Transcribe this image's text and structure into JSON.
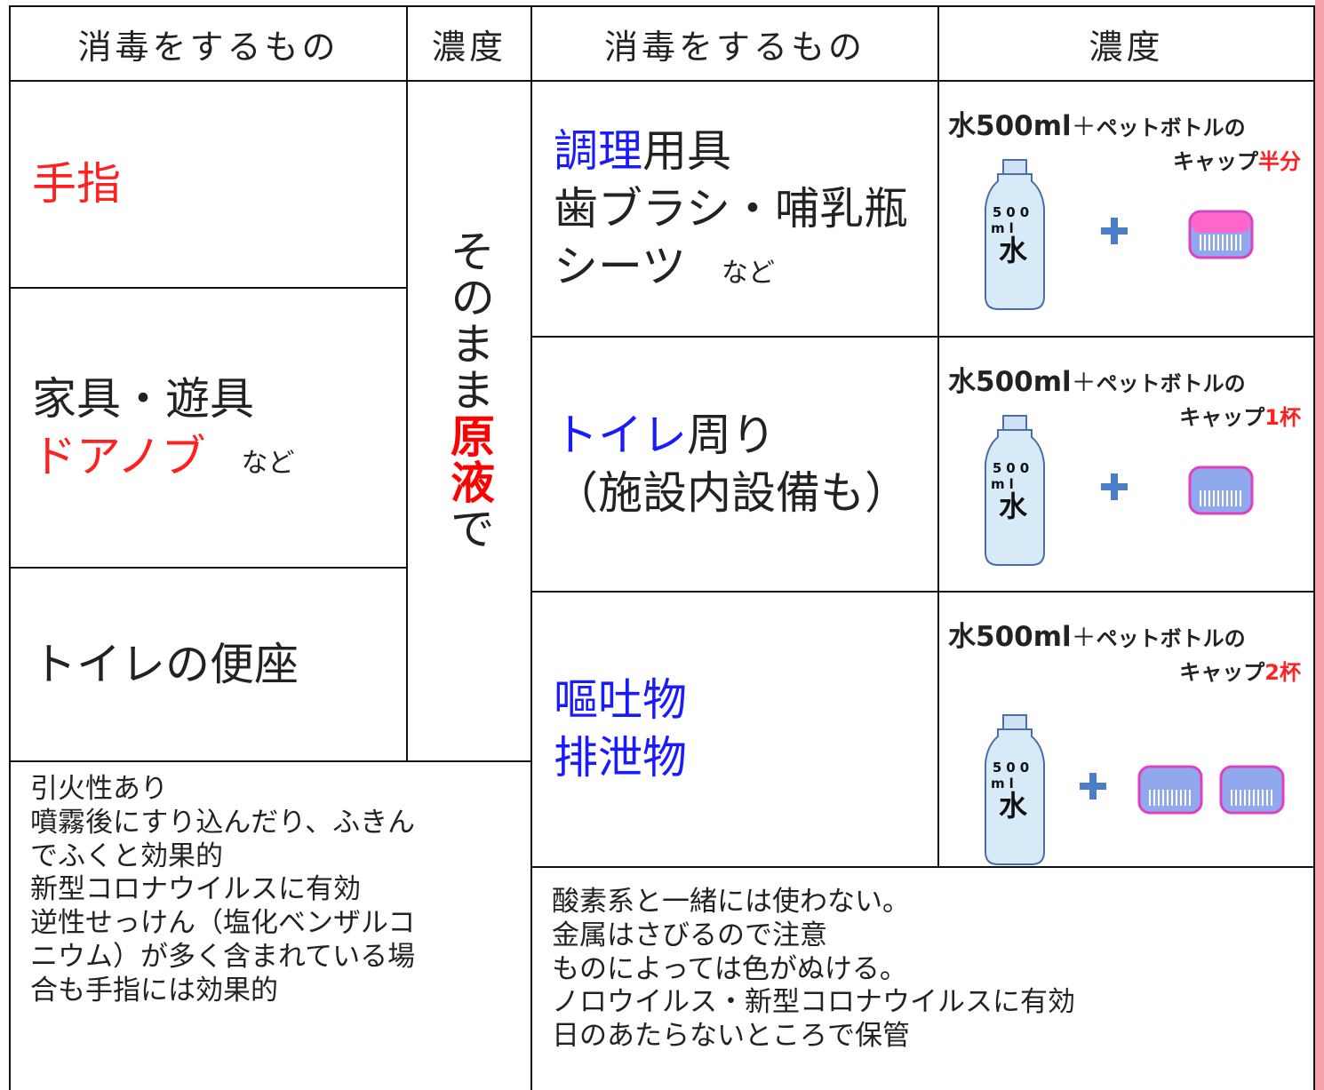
{
  "left": {
    "headers": [
      "消毒をするもの",
      "濃度"
    ],
    "rows": [
      [
        [
          {
            "text": "手指",
            "color": "#ff2020"
          }
        ]
      ],
      [
        [
          {
            "text": "家具・遊具"
          }
        ],
        [
          {
            "text": "ドアノブ",
            "color": "#ff2020"
          },
          {
            "text": "など",
            "style": "small"
          }
        ]
      ],
      [
        [
          {
            "text": "トイレの便座"
          }
        ]
      ]
    ],
    "concentration": [
      {
        "text": "そのまま"
      },
      {
        "text": "原液",
        "color": "#ff0000",
        "bold": true
      },
      {
        "text": "で"
      }
    ],
    "notes": [
      "引火性あり",
      "噴霧後にすり込んだり、ふきん",
      "でふくと効果的",
      "新型コロナウイルスに有効",
      "逆性せっけん（塩化ベンザルコ",
      "ニウム）が多く含まれている場",
      "合も手指には効果的"
    ]
  },
  "right": {
    "headers": [
      "消毒をするもの",
      "濃度"
    ],
    "rows": [
      {
        "item": [
          [
            {
              "text": "調理",
              "color": "#1a1aff"
            },
            {
              "text": "用具"
            }
          ],
          [
            {
              "text": "歯ブラシ・哺乳瓶"
            }
          ],
          [
            {
              "text": "シーツ"
            },
            {
              "text": "など",
              "style": "small"
            }
          ]
        ],
        "amount": {
          "water": "水500ml",
          "plus": "＋",
          "bottle_text": "ペットボトルの",
          "cap": "キャップ",
          "measure": "半分",
          "bottle": [
            "500",
            "ml",
            "水"
          ],
          "caps": 1
        }
      },
      {
        "item": [
          [
            {
              "text": "トイレ",
              "color": "#1a1aff"
            },
            {
              "text": "周り"
            }
          ],
          [
            {
              "text": "（施設内設備も）"
            }
          ]
        ],
        "amount": {
          "water": "水500ml",
          "plus": "＋",
          "bottle_text": "ペットボトルの",
          "cap": "キャップ",
          "measure": "1杯",
          "bottle": [
            "500",
            "ml",
            "水"
          ],
          "caps": 1
        }
      },
      {
        "item": [
          [
            {
              "text": "嘔吐物",
              "color": "#1a1aff"
            }
          ],
          [
            {
              "text": "排泄物",
              "color": "#1a1aff"
            }
          ]
        ],
        "amount": {
          "water": "水500ml",
          "plus": "＋",
          "bottle_text": "ペットボトルの",
          "cap": "キャップ",
          "measure": "2杯",
          "bottle": [
            "500",
            "ml",
            "水"
          ],
          "caps": 2
        }
      }
    ],
    "notes": [
      "酸素系と一緒には使わない。",
      "金属はさびるので注意",
      "ものによっては色がぬける。",
      "ノロウイルス・新型コロナウイルスに有効",
      "日のあたらないところで保管"
    ]
  }
}
